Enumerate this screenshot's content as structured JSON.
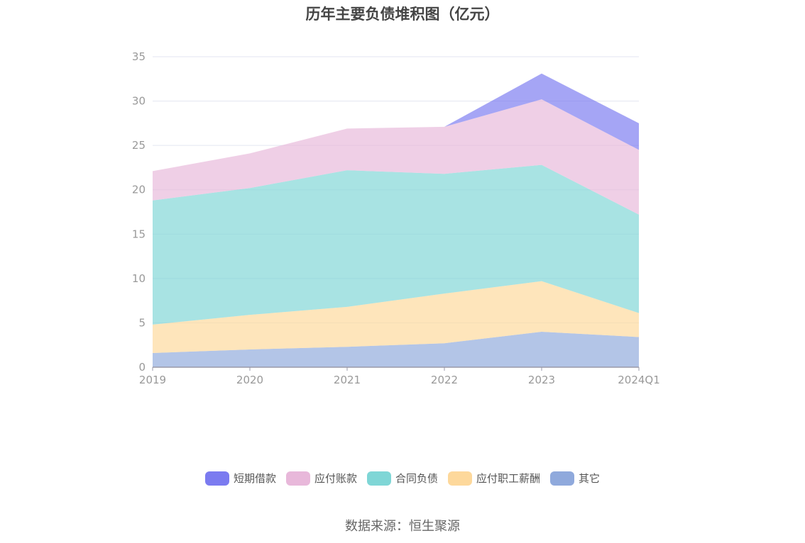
{
  "title": "历年主要负债堆积图（亿元）",
  "source": "数据来源：恒生聚源",
  "chart_data": {
    "type": "area",
    "stacked": true,
    "categories": [
      "2019",
      "2020",
      "2021",
      "2022",
      "2023",
      "2024Q1"
    ],
    "ylim": [
      0,
      35
    ],
    "yticks": [
      0,
      5,
      10,
      15,
      20,
      25,
      30,
      35
    ],
    "grid": true,
    "legend_position": "bottom",
    "series": [
      {
        "name": "其它",
        "color": "#8fa9dc",
        "values": [
          1.6,
          2.0,
          2.3,
          2.7,
          4.0,
          3.4
        ]
      },
      {
        "name": "应付职工薪酬",
        "color": "#fdd89b",
        "values": [
          3.2,
          3.9,
          4.5,
          5.6,
          5.7,
          2.7
        ]
      },
      {
        "name": "合同负债",
        "color": "#7fd6d6",
        "values": [
          14.0,
          14.3,
          15.4,
          13.5,
          13.1,
          11.1
        ]
      },
      {
        "name": "应付账款",
        "color": "#e8b8da",
        "values": [
          3.3,
          3.9,
          4.7,
          5.3,
          7.4,
          7.3
        ]
      },
      {
        "name": "短期借款",
        "color": "#7b7bf0",
        "values": [
          0,
          0,
          0,
          0,
          2.9,
          3.0
        ]
      }
    ],
    "legend_order": [
      "短期借款",
      "应付账款",
      "合同负债",
      "应付职工薪酬",
      "其它"
    ]
  }
}
